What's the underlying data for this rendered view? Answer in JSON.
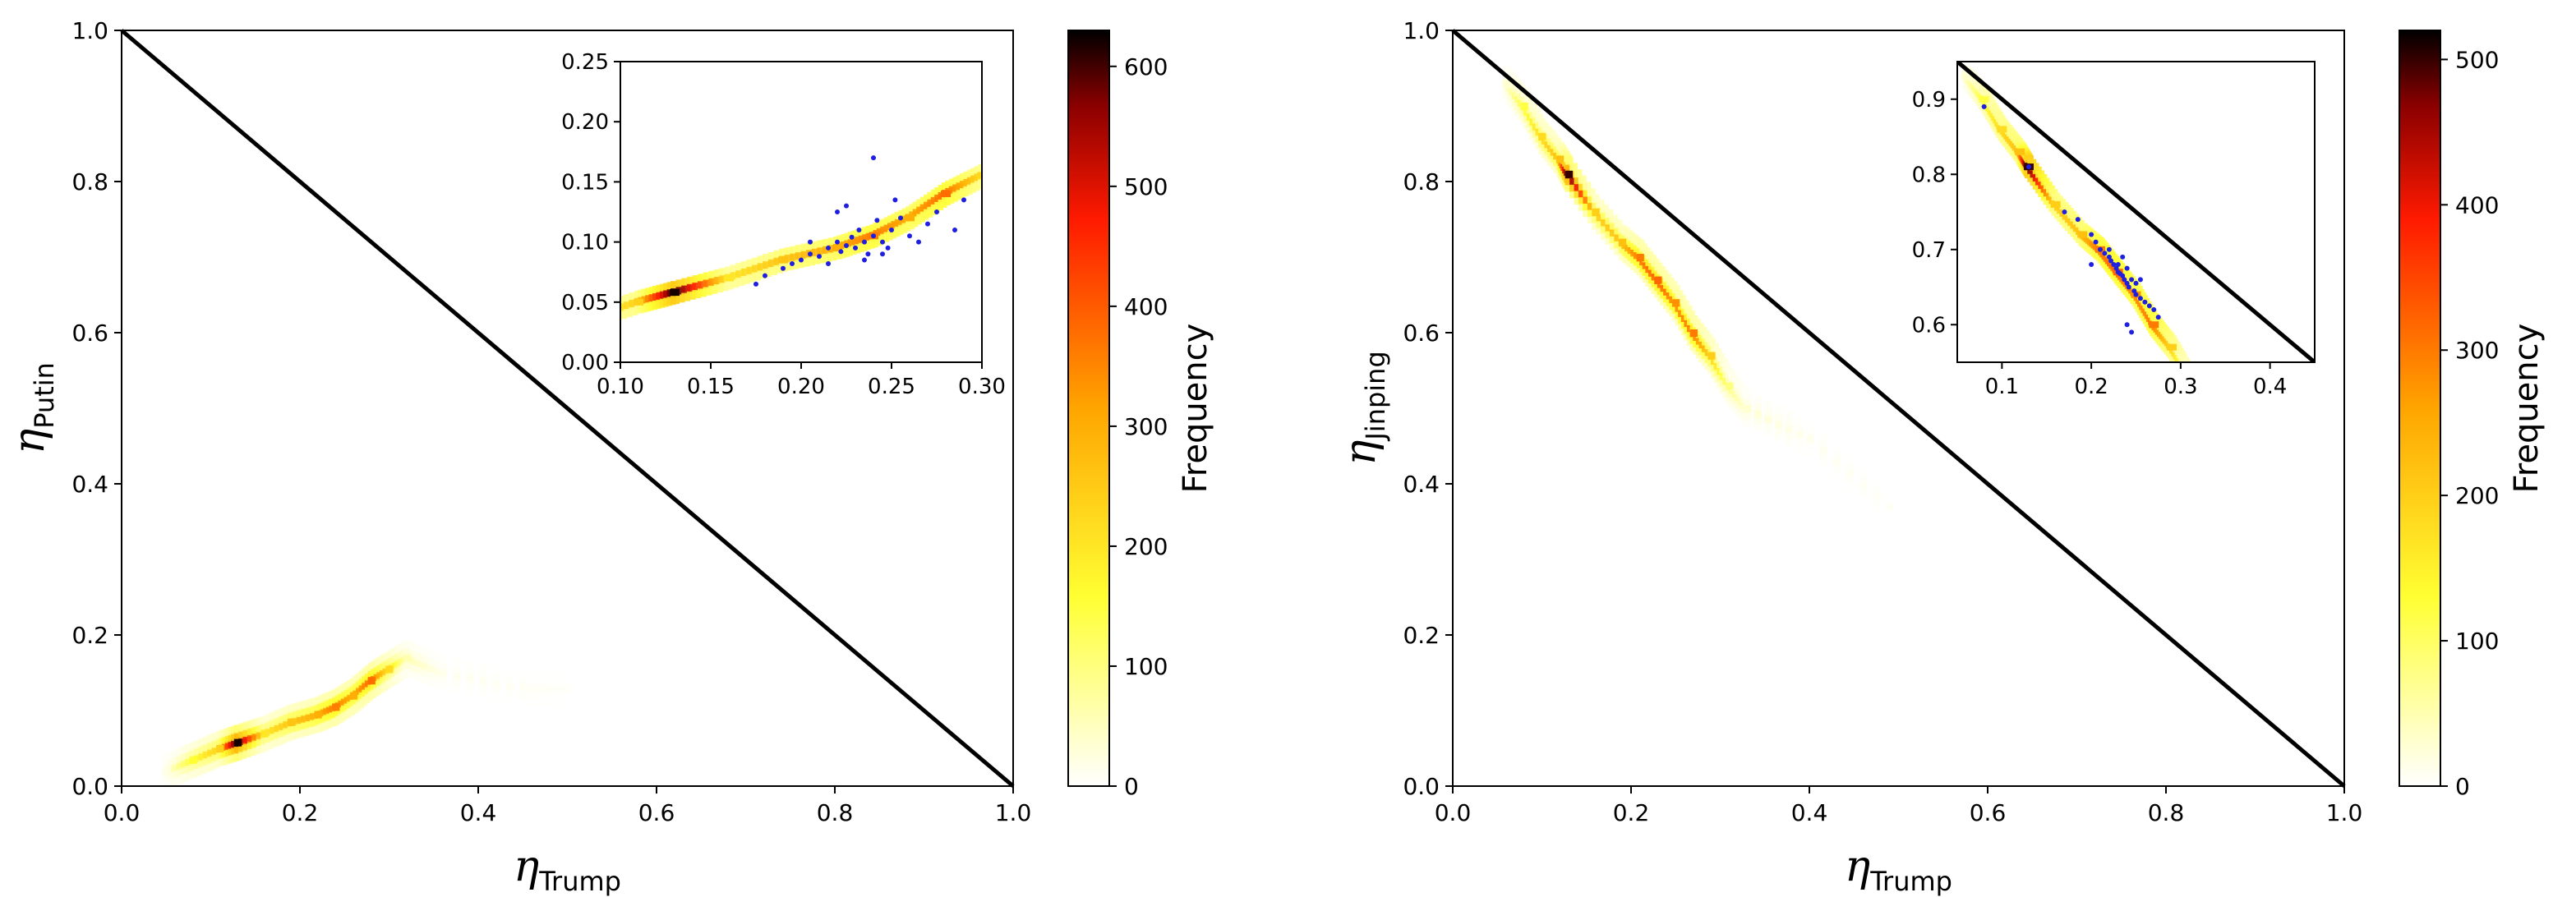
{
  "chart_data": [
    {
      "type": "heatmap",
      "xlabel": {
        "symbol": "η",
        "sub": "Trump"
      },
      "ylabel": {
        "symbol": "η",
        "sub": "Putin"
      },
      "xlim": [
        0,
        1
      ],
      "ylim": [
        0,
        1
      ],
      "xticks": [
        "0.0",
        "0.2",
        "0.4",
        "0.6",
        "0.8",
        "1.0"
      ],
      "yticks": [
        "0.0",
        "0.2",
        "0.4",
        "0.6",
        "0.8",
        "1.0"
      ],
      "reference_line": {
        "x": [
          0,
          1
        ],
        "y": [
          1,
          0
        ]
      },
      "colorbar": {
        "label": "Frequency",
        "range": [
          0,
          630
        ],
        "ticks": [
          "0",
          "100",
          "200",
          "300",
          "400",
          "500",
          "600"
        ],
        "colormap": "hot_r"
      },
      "density_ridge": [
        [
          0.05,
          0.02,
          20
        ],
        [
          0.08,
          0.035,
          160
        ],
        [
          0.11,
          0.05,
          240
        ],
        [
          0.13,
          0.058,
          620
        ],
        [
          0.16,
          0.07,
          200
        ],
        [
          0.19,
          0.085,
          260
        ],
        [
          0.22,
          0.095,
          300
        ],
        [
          0.24,
          0.105,
          360
        ],
        [
          0.26,
          0.12,
          300
        ],
        [
          0.28,
          0.14,
          380
        ],
        [
          0.3,
          0.155,
          220
        ],
        [
          0.32,
          0.17,
          60
        ],
        [
          0.36,
          0.15,
          15
        ],
        [
          0.45,
          0.13,
          8
        ],
        [
          0.5,
          0.13,
          5
        ]
      ],
      "inset": {
        "xlim": [
          0.1,
          0.3
        ],
        "ylim": [
          0,
          0.25
        ],
        "xticks": [
          "0.10",
          "0.15",
          "0.20",
          "0.25",
          "0.30"
        ],
        "yticks": [
          "0.00",
          "0.05",
          "0.10",
          "0.15",
          "0.20",
          "0.25"
        ],
        "points_color": "#1f1fe0",
        "points": [
          [
            0.175,
            0.065
          ],
          [
            0.18,
            0.072
          ],
          [
            0.19,
            0.078
          ],
          [
            0.195,
            0.082
          ],
          [
            0.2,
            0.085
          ],
          [
            0.205,
            0.09
          ],
          [
            0.21,
            0.088
          ],
          [
            0.215,
            0.095
          ],
          [
            0.22,
            0.1
          ],
          [
            0.222,
            0.092
          ],
          [
            0.225,
            0.097
          ],
          [
            0.228,
            0.104
          ],
          [
            0.23,
            0.095
          ],
          [
            0.232,
            0.11
          ],
          [
            0.235,
            0.1
          ],
          [
            0.237,
            0.09
          ],
          [
            0.24,
            0.105
          ],
          [
            0.242,
            0.118
          ],
          [
            0.245,
            0.1
          ],
          [
            0.248,
            0.095
          ],
          [
            0.25,
            0.11
          ],
          [
            0.255,
            0.12
          ],
          [
            0.26,
            0.105
          ],
          [
            0.265,
            0.1
          ],
          [
            0.27,
            0.115
          ],
          [
            0.275,
            0.125
          ],
          [
            0.285,
            0.11
          ],
          [
            0.29,
            0.135
          ],
          [
            0.24,
            0.17
          ],
          [
            0.225,
            0.13
          ],
          [
            0.235,
            0.085
          ],
          [
            0.215,
            0.082
          ],
          [
            0.245,
            0.09
          ],
          [
            0.22,
            0.125
          ],
          [
            0.252,
            0.135
          ],
          [
            0.205,
            0.1
          ]
        ]
      }
    },
    {
      "type": "heatmap",
      "xlabel": {
        "symbol": "η",
        "sub": "Trump"
      },
      "ylabel": {
        "symbol": "η",
        "sub": "Jinping"
      },
      "xlim": [
        0,
        1
      ],
      "ylim": [
        0,
        1
      ],
      "xticks": [
        "0.0",
        "0.2",
        "0.4",
        "0.6",
        "0.8",
        "1.0"
      ],
      "yticks": [
        "0.0",
        "0.2",
        "0.4",
        "0.6",
        "0.8",
        "1.0"
      ],
      "reference_line": {
        "x": [
          0,
          1
        ],
        "y": [
          1,
          0
        ]
      },
      "colorbar": {
        "label": "Frequency",
        "range": [
          0,
          520
        ],
        "ticks": [
          "0",
          "100",
          "200",
          "300",
          "400",
          "500"
        ],
        "colormap": "hot_r"
      },
      "density_ridge": [
        [
          0.06,
          0.93,
          30
        ],
        [
          0.08,
          0.9,
          120
        ],
        [
          0.1,
          0.86,
          180
        ],
        [
          0.12,
          0.83,
          220
        ],
        [
          0.13,
          0.81,
          500
        ],
        [
          0.16,
          0.76,
          200
        ],
        [
          0.19,
          0.72,
          220
        ],
        [
          0.21,
          0.7,
          300
        ],
        [
          0.23,
          0.67,
          320
        ],
        [
          0.25,
          0.64,
          280
        ],
        [
          0.27,
          0.6,
          300
        ],
        [
          0.29,
          0.57,
          200
        ],
        [
          0.31,
          0.53,
          80
        ],
        [
          0.33,
          0.5,
          30
        ],
        [
          0.4,
          0.46,
          10
        ],
        [
          0.49,
          0.37,
          6
        ]
      ],
      "inset": {
        "xlim": [
          0.05,
          0.45
        ],
        "ylim": [
          0.55,
          0.95
        ],
        "xticks": [
          "0.1",
          "0.2",
          "0.3",
          "0.4"
        ],
        "yticks": [
          "0.6",
          "0.7",
          "0.8",
          "0.9"
        ],
        "points_color": "#1f1fe0",
        "points": [
          [
            0.08,
            0.89
          ],
          [
            0.13,
            0.81
          ],
          [
            0.17,
            0.75
          ],
          [
            0.185,
            0.74
          ],
          [
            0.2,
            0.72
          ],
          [
            0.205,
            0.71
          ],
          [
            0.21,
            0.7
          ],
          [
            0.215,
            0.695
          ],
          [
            0.22,
            0.69
          ],
          [
            0.222,
            0.685
          ],
          [
            0.225,
            0.68
          ],
          [
            0.228,
            0.675
          ],
          [
            0.23,
            0.67
          ],
          [
            0.232,
            0.668
          ],
          [
            0.235,
            0.665
          ],
          [
            0.237,
            0.66
          ],
          [
            0.24,
            0.655
          ],
          [
            0.242,
            0.65
          ],
          [
            0.245,
            0.66
          ],
          [
            0.248,
            0.645
          ],
          [
            0.25,
            0.64
          ],
          [
            0.255,
            0.635
          ],
          [
            0.26,
            0.63
          ],
          [
            0.265,
            0.625
          ],
          [
            0.27,
            0.62
          ],
          [
            0.275,
            0.61
          ],
          [
            0.24,
            0.6
          ],
          [
            0.245,
            0.59
          ],
          [
            0.22,
            0.7
          ],
          [
            0.23,
            0.68
          ],
          [
            0.235,
            0.69
          ],
          [
            0.25,
            0.655
          ],
          [
            0.255,
            0.66
          ],
          [
            0.2,
            0.68
          ],
          [
            0.24,
            0.675
          ]
        ]
      }
    }
  ]
}
